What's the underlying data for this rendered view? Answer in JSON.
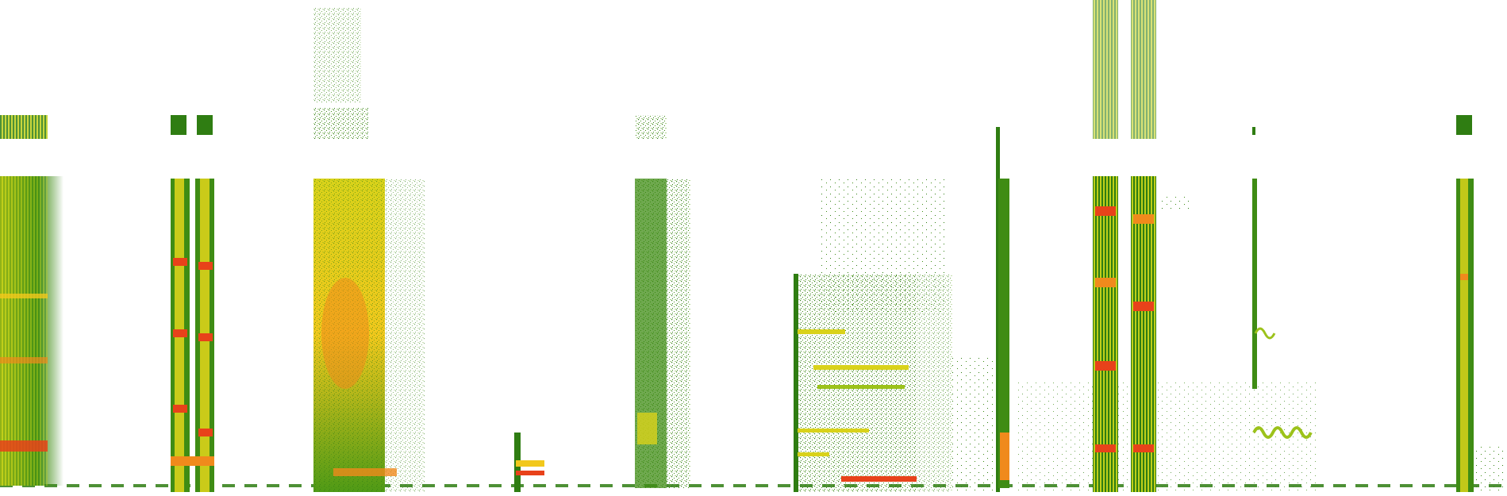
{
  "image": {
    "kind": "spectrogram",
    "background": "#ffffff",
    "palette": {
      "low": "#2f7d12",
      "mid": "#9cc21a",
      "high": "#f2e21c",
      "peak": "#f08a1c",
      "max": "#e8421a"
    },
    "visible_text": []
  }
}
